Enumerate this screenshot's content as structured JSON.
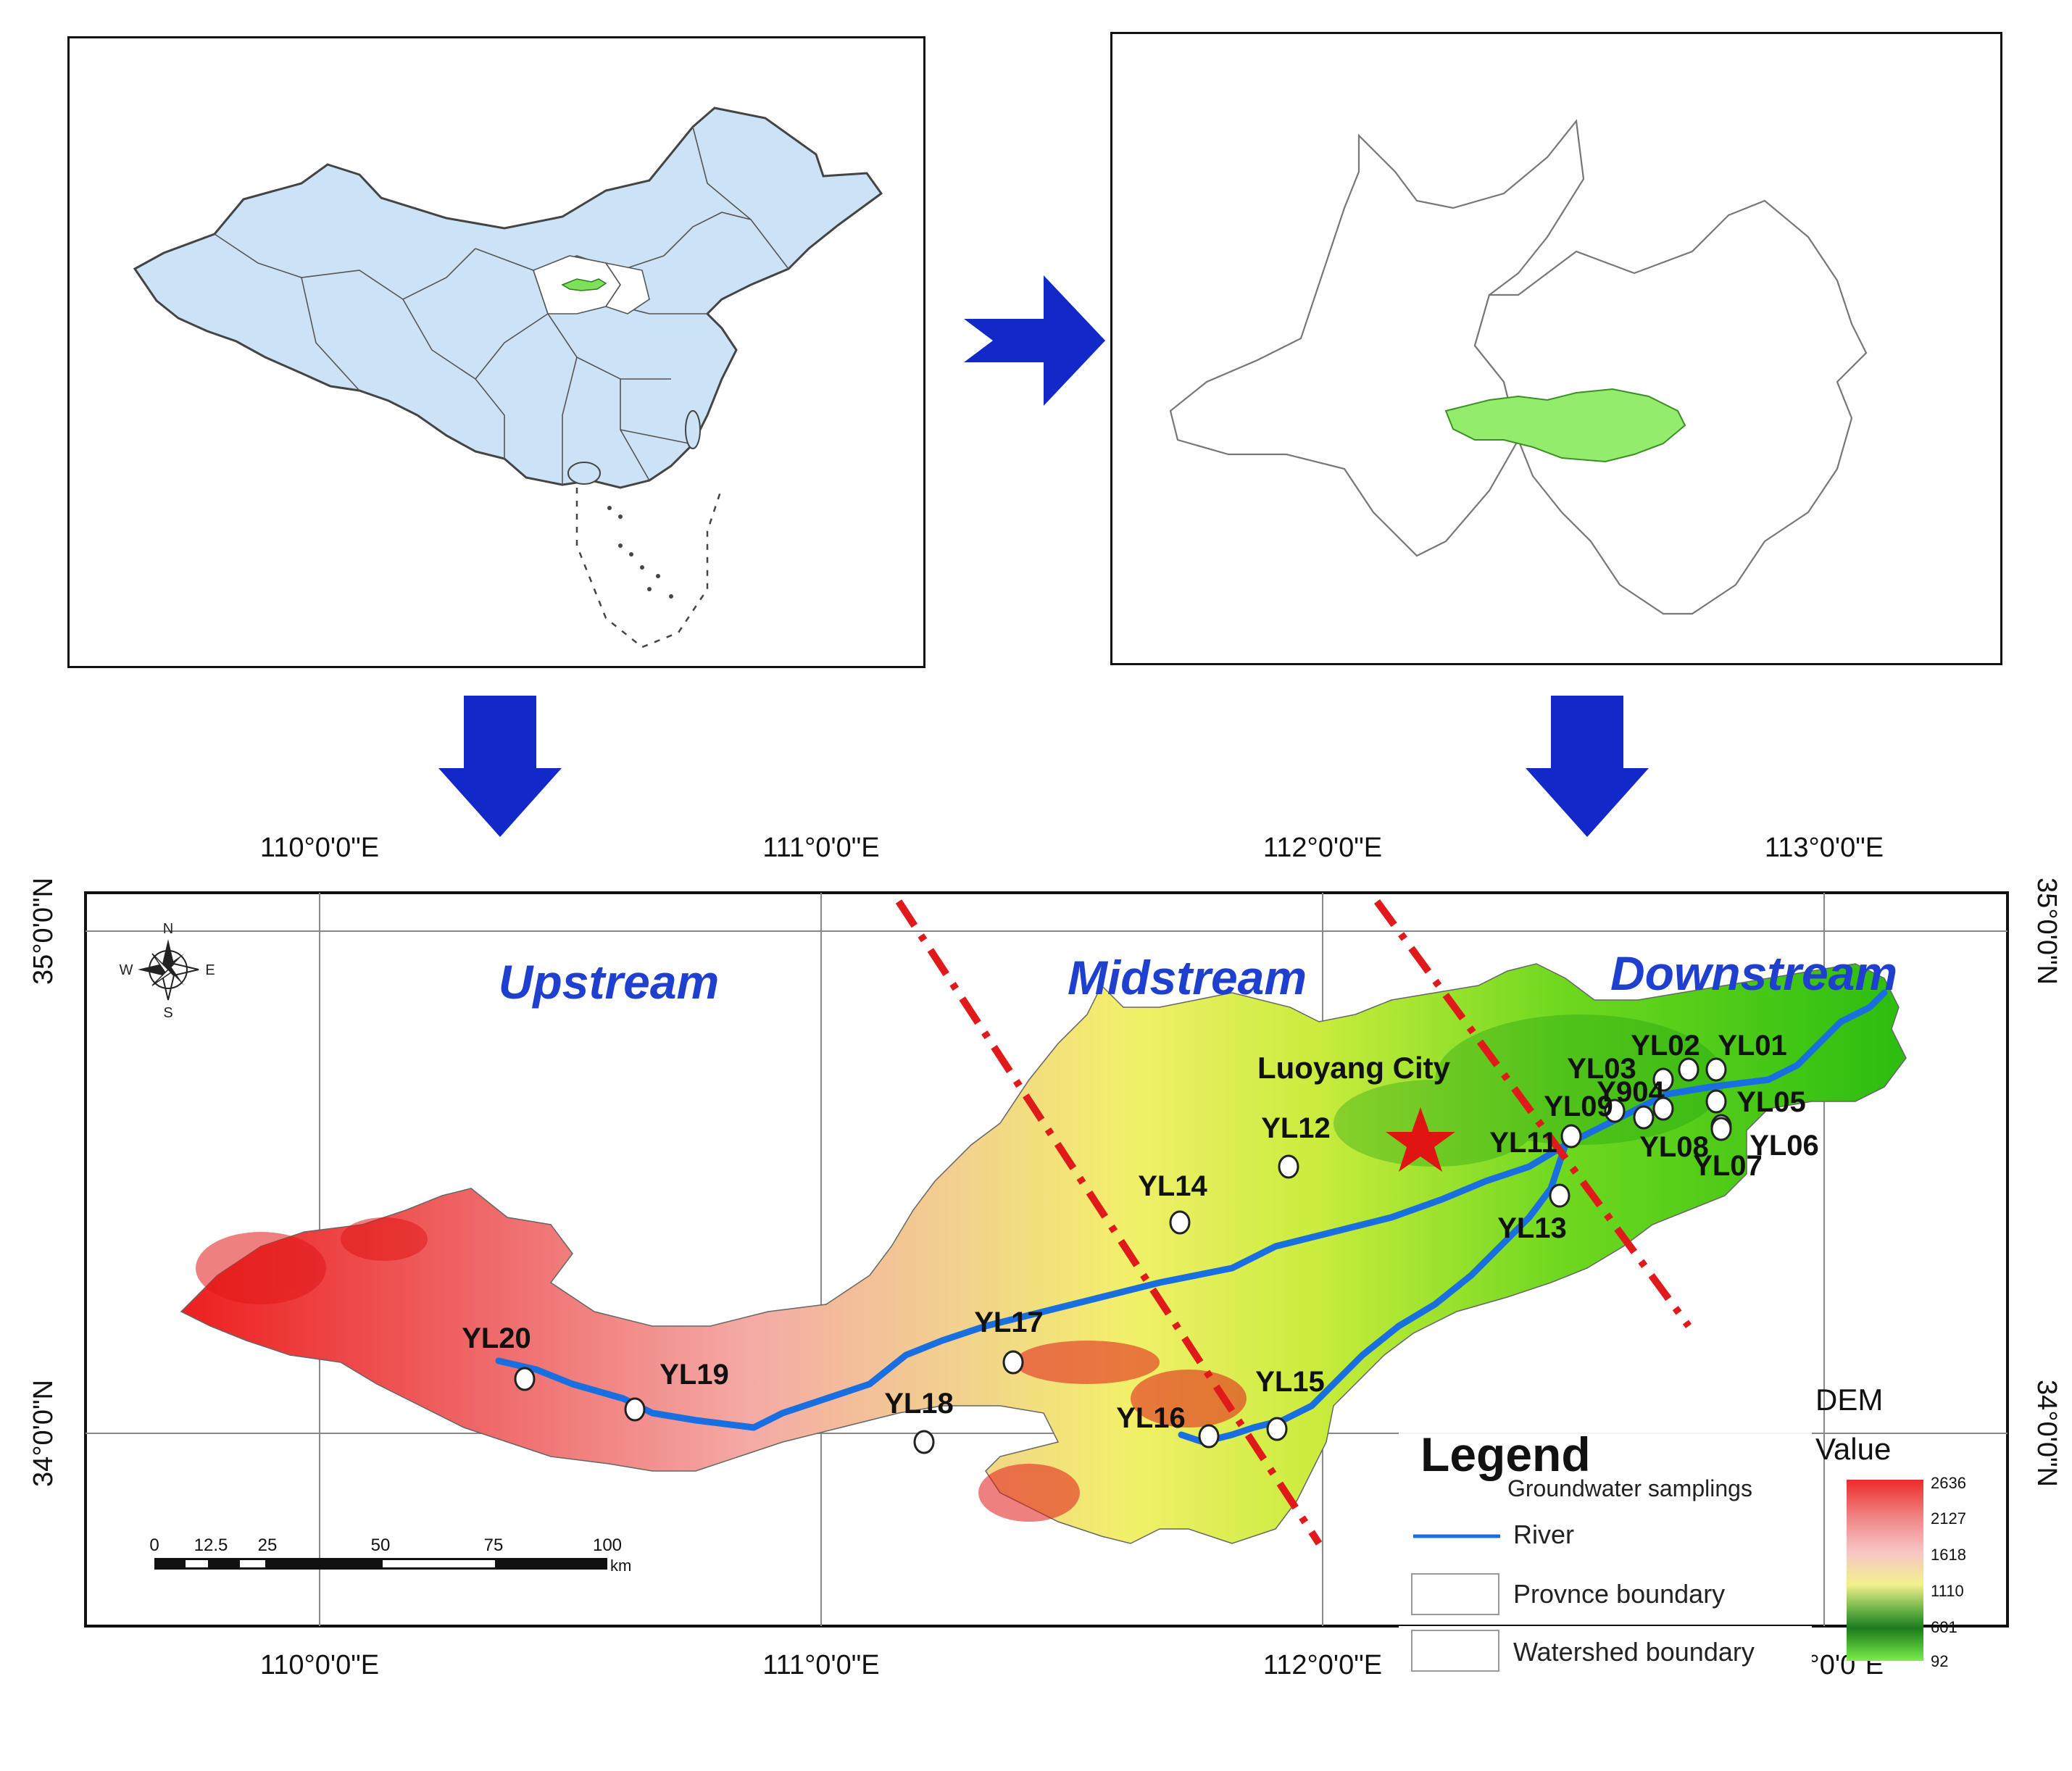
{
  "grid": {
    "lon_labels": [
      "110°0'0\"E",
      "111°0'0\"E",
      "112°0'0\"E",
      "113°0'0\"E"
    ],
    "lat_labels": [
      "35°0'0\"N",
      "34°0'0\"N"
    ]
  },
  "compass": {
    "n": "N",
    "s": "S",
    "e": "E",
    "w": "W"
  },
  "regions": {
    "upstream": "Upstream",
    "midstream": "Midstream",
    "downstream": "Downstream"
  },
  "city": {
    "name": "Luoyang City"
  },
  "samples": [
    {
      "id": "YL01",
      "label": "YL01"
    },
    {
      "id": "YL02",
      "label": "YL02"
    },
    {
      "id": "YL03",
      "label": "YL03"
    },
    {
      "id": "Y904",
      "label": "Y904"
    },
    {
      "id": "YL05",
      "label": "YL05"
    },
    {
      "id": "YL06",
      "label": "YL06"
    },
    {
      "id": "YL07",
      "label": "YL07"
    },
    {
      "id": "YL08",
      "label": "YL08"
    },
    {
      "id": "YL09",
      "label": "YL09"
    },
    {
      "id": "YL11",
      "label": "YL11"
    },
    {
      "id": "YL12",
      "label": "YL12"
    },
    {
      "id": "YL13",
      "label": "YL13"
    },
    {
      "id": "YL14",
      "label": "YL14"
    },
    {
      "id": "YL15",
      "label": "YL15"
    },
    {
      "id": "YL16",
      "label": "YL16"
    },
    {
      "id": "YL17",
      "label": "YL17"
    },
    {
      "id": "YL18",
      "label": "YL18"
    },
    {
      "id": "YL19",
      "label": "YL19"
    },
    {
      "id": "YL20",
      "label": "YL20"
    }
  ],
  "legend": {
    "title": "Legend",
    "groundwater": "Groundwater samplings",
    "river": "River",
    "province": "Provnce boundary",
    "watershed": "Watershed  boundary"
  },
  "dem": {
    "title": "DEM",
    "subtitle": "Value",
    "ticks": [
      "2636",
      "2127",
      "1618",
      "1110",
      "601",
      "92"
    ]
  },
  "scale_bar": {
    "ticks": [
      "0",
      "12.5",
      "25",
      "50",
      "75",
      "100"
    ],
    "unit": "km"
  },
  "colors": {
    "arrow": "#1228c8",
    "region_text": "#1f3fcf",
    "river": "#1a6fe0",
    "divider": "#e01a1a",
    "china_fill": "#cce3f7",
    "highlight": "#7fe05a"
  }
}
